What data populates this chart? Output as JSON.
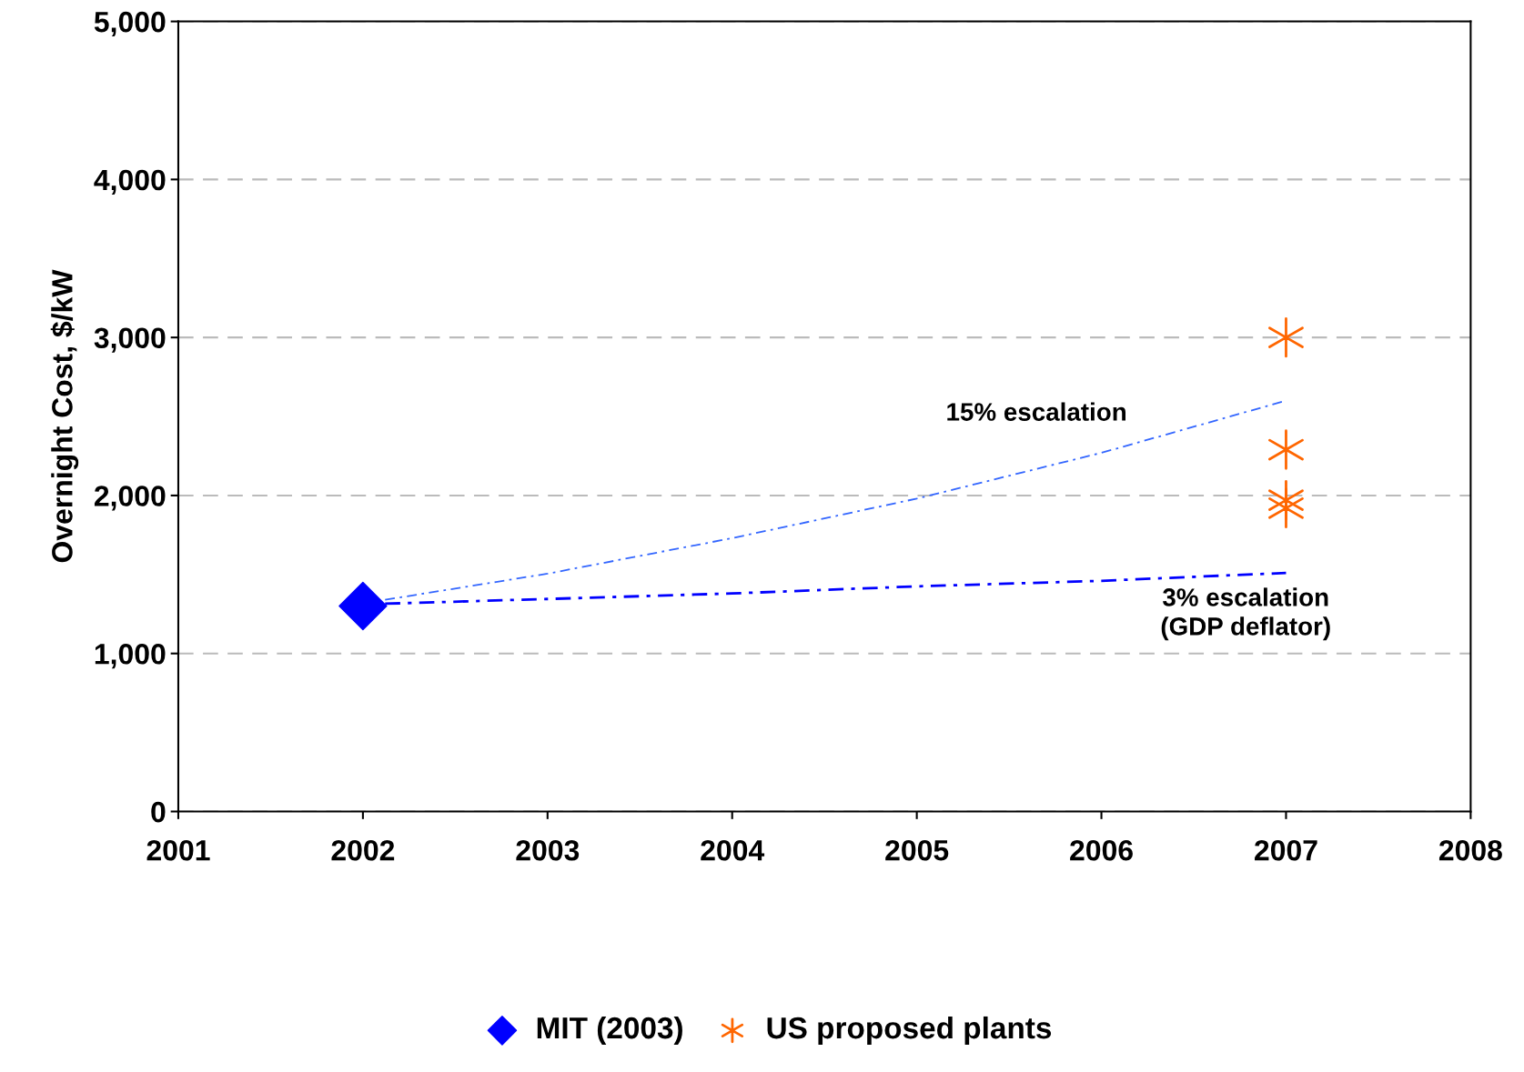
{
  "chart_data": {
    "type": "line",
    "ylabel": "Overnight Cost, $/kW",
    "series": [
      {
        "color": "#3366ff",
        "line_style": "dashed",
        "marker": "none",
        "x": [
          2002.12,
          2003,
          2004,
          2005,
          2006,
          2007
        ],
        "values": [
          1340,
          1505,
          1730,
          1980,
          2270,
          2600
        ]
      },
      {
        "color": "#0000ff",
        "line_style": "dashed",
        "marker": "none",
        "x": [
          2002.12,
          2003,
          2004,
          2005,
          2006,
          2007
        ],
        "values": [
          1315,
          1345,
          1380,
          1425,
          1460,
          1510
        ]
      },
      {
        "type": "scatter",
        "name": "MIT (2003)",
        "color": "#0000ff",
        "marker": "diamond",
        "x": [
          2002
        ],
        "values": [
          1300
        ]
      },
      {
        "type": "scatter",
        "name": "US proposed plants",
        "color": "#ff6600",
        "marker": "cross",
        "x": [
          2007,
          2007,
          2007,
          2007
        ],
        "values": [
          3000,
          2290,
          1970,
          1920
        ]
      }
    ],
    "annotations": [
      "15% escalation",
      "3% escalation\n(GDP deflator)"
    ],
    "xlim": [
      2001,
      2008
    ],
    "xticks": [
      2001,
      2002,
      2003,
      2004,
      2005,
      2006,
      2007,
      2008
    ],
    "ylim": [
      0,
      5000
    ],
    "yticks": [
      {
        "value": 0,
        "label": "0"
      },
      {
        "value": 1000,
        "label": "1,000"
      },
      {
        "value": 2000,
        "label": "2,000"
      },
      {
        "value": 3000,
        "label": "3,000"
      },
      {
        "value": 4000,
        "label": "4,000"
      },
      {
        "value": 5000,
        "label": "5,000"
      }
    ],
    "grid": "y",
    "legend": "bottom"
  }
}
